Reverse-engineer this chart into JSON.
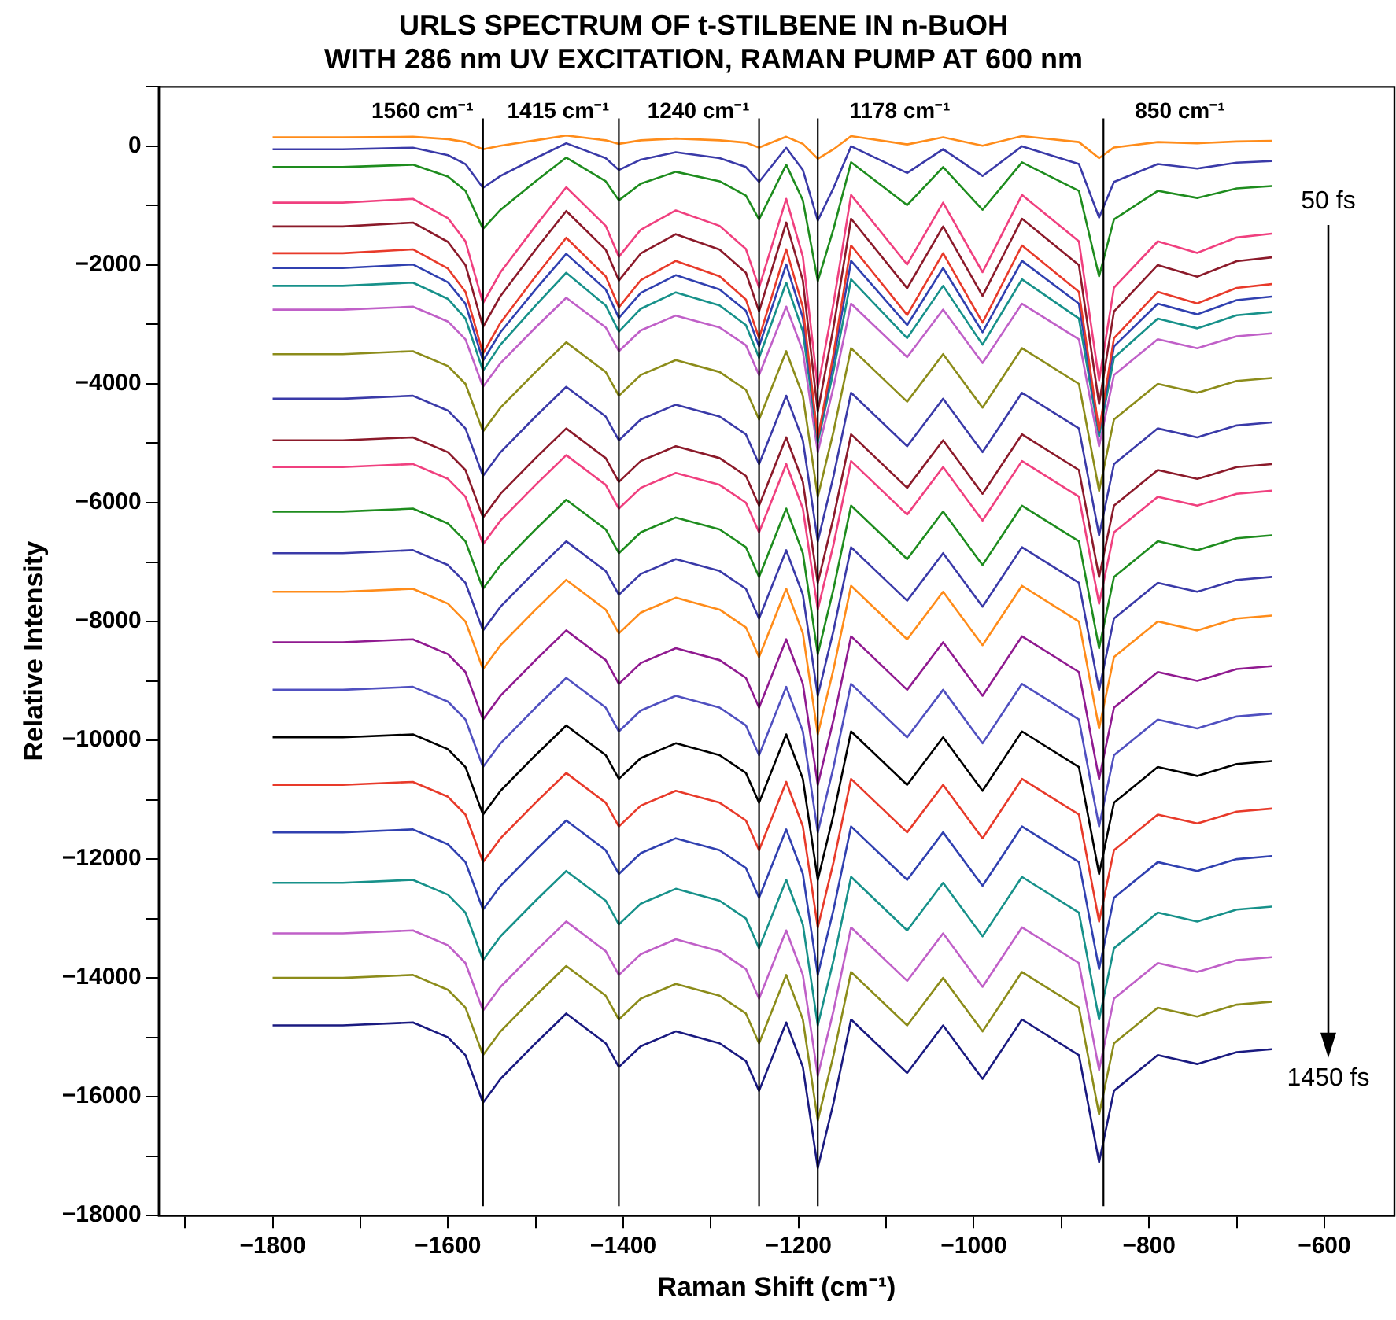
{
  "chart_data": {
    "type": "line",
    "title": "URLS SPECTRUM OF t-STILBENE IN n-BuOH\nWITH 286 nm UV EXCITATION, RAMAN PUMP AT 600 nm",
    "xlabel": "Raman Shift (cm⁻¹)",
    "ylabel": "Relative Intensity",
    "marker": "none",
    "grid": false,
    "xlim": [
      -1930,
      -520
    ],
    "ylim": [
      -18000,
      1000
    ],
    "xticks": [
      {
        "value": -1900,
        "label": null
      },
      {
        "value": -1800,
        "label": "−1800"
      },
      {
        "value": -1700,
        "label": null
      },
      {
        "value": -1600,
        "label": "−1600"
      },
      {
        "value": -1500,
        "label": null
      },
      {
        "value": -1400,
        "label": "−1400"
      },
      {
        "value": -1300,
        "label": null
      },
      {
        "value": -1200,
        "label": "−1200"
      },
      {
        "value": -1100,
        "label": null
      },
      {
        "value": -1000,
        "label": "−1000"
      },
      {
        "value": -900,
        "label": null
      },
      {
        "value": -800,
        "label": "−800"
      },
      {
        "value": -700,
        "label": null
      },
      {
        "value": -600,
        "label": "−600"
      }
    ],
    "yticks": [
      {
        "value": 1000,
        "label": null
      },
      0,
      {
        "value": -1000,
        "label": null
      },
      {
        "value": -2000,
        "label": "−2000"
      },
      {
        "value": -3000,
        "label": null
      },
      {
        "value": -4000,
        "label": "−4000"
      },
      {
        "value": -5000,
        "label": null
      },
      {
        "value": -6000,
        "label": "−6000"
      },
      {
        "value": -7000,
        "label": null
      },
      {
        "value": -8000,
        "label": "−8000"
      },
      {
        "value": -9000,
        "label": null
      },
      {
        "value": -10000,
        "label": "−10000"
      },
      {
        "value": -11000,
        "label": null
      },
      {
        "value": -12000,
        "label": "−12000"
      },
      {
        "value": -13000,
        "label": null
      },
      {
        "value": -14000,
        "label": "−14000"
      },
      {
        "value": -15000,
        "label": null
      },
      {
        "value": -16000,
        "label": "−16000"
      },
      {
        "value": -17000,
        "label": null
      },
      {
        "value": -18000,
        "label": "−18000"
      }
    ],
    "ref_lines": [
      {
        "axis": "x",
        "value": -1560,
        "label": "1560 cm⁻¹",
        "color": "#000000"
      },
      {
        "axis": "x",
        "value": -1405,
        "label": "1415 cm⁻¹",
        "color": "#000000"
      },
      {
        "axis": "x",
        "value": -1245,
        "label": "1240 cm⁻¹",
        "color": "#000000"
      },
      {
        "axis": "x",
        "value": -1178,
        "label": "1178 cm⁻¹",
        "color": "#000000"
      },
      {
        "axis": "x",
        "value": -852,
        "label": "850 cm⁻¹",
        "color": "#000000"
      }
    ],
    "annotations": [
      "50 fs",
      "1450 fs"
    ],
    "x": [
      -1800,
      -1720,
      -1640,
      -1600,
      -1580,
      -1560,
      -1540,
      -1500,
      -1465,
      -1420,
      -1405,
      -1380,
      -1340,
      -1290,
      -1260,
      -1245,
      -1214,
      -1195,
      -1178,
      -1160,
      -1140,
      -1076,
      -1035,
      -990,
      -945,
      -880,
      -857,
      -840,
      -790,
      -745,
      -700,
      -660
    ],
    "series": [
      {
        "color": "#ff8c1a",
        "values": [
          150,
          150,
          160,
          120,
          70,
          -50,
          10,
          100,
          180,
          100,
          40,
          100,
          130,
          100,
          60,
          -20,
          160,
          40,
          -210,
          -50,
          170,
          30,
          150,
          10,
          170,
          70,
          -200,
          -20,
          70,
          50,
          80,
          90
        ]
      },
      {
        "color": "#3a3aa8",
        "values": [
          -50,
          -50,
          -25,
          -150,
          -300,
          -700,
          -500,
          -200,
          50,
          -200,
          -400,
          -225,
          -100,
          -200,
          -350,
          -600,
          -25,
          -400,
          -1250,
          -700,
          0,
          -450,
          -50,
          -500,
          0,
          -300,
          -1200,
          -600,
          -300,
          -375,
          -275,
          -250
        ]
      },
      {
        "color": "#1e8c1e",
        "values": [
          -350,
          -350,
          -310,
          -510,
          -750,
          -1390,
          -1070,
          -590,
          -190,
          -590,
          -910,
          -630,
          -430,
          -590,
          -830,
          -1230,
          -310,
          -910,
          -2270,
          -1390,
          -270,
          -990,
          -350,
          -1070,
          -270,
          -750,
          -2190,
          -1230,
          -750,
          -870,
          -710,
          -670
        ]
      },
      {
        "color": "#f0407f",
        "values": [
          -950,
          -950,
          -885,
          -1210,
          -1600,
          -2640,
          -2120,
          -1340,
          -690,
          -1340,
          -1860,
          -1405,
          -1080,
          -1340,
          -1730,
          -2380,
          -885,
          -1860,
          -4070,
          -2640,
          -820,
          -1990,
          -950,
          -2120,
          -820,
          -1600,
          -3940,
          -2380,
          -1600,
          -1795,
          -1535,
          -1470
        ]
      },
      {
        "color": "#8b1a2a",
        "values": [
          -1350,
          -1350,
          -1285,
          -1610,
          -2000,
          -3040,
          -2520,
          -1740,
          -1090,
          -1740,
          -2260,
          -1805,
          -1480,
          -1740,
          -2130,
          -2780,
          -1285,
          -2260,
          -4470,
          -3040,
          -1220,
          -2390,
          -1350,
          -2520,
          -1220,
          -2000,
          -4340,
          -2780,
          -2000,
          -2195,
          -1935,
          -1870
        ]
      },
      {
        "color": "#e83a2a",
        "values": [
          -1800,
          -1800,
          -1735,
          -2060,
          -2450,
          -3490,
          -2970,
          -2190,
          -1540,
          -2190,
          -2710,
          -2255,
          -1930,
          -2190,
          -2580,
          -3230,
          -1735,
          -2710,
          -4920,
          -3490,
          -1670,
          -2840,
          -1800,
          -2970,
          -1670,
          -2450,
          -4790,
          -3230,
          -2450,
          -2645,
          -2385,
          -2320
        ]
      },
      {
        "color": "#3040b0",
        "values": [
          -2050,
          -2050,
          -1990,
          -2290,
          -2650,
          -3610,
          -3130,
          -2410,
          -1810,
          -2410,
          -2890,
          -2470,
          -2170,
          -2410,
          -2770,
          -3370,
          -1990,
          -2890,
          -4930,
          -3610,
          -1930,
          -3010,
          -2050,
          -3130,
          -1930,
          -2650,
          -4810,
          -3370,
          -2650,
          -2830,
          -2590,
          -2530
        ]
      },
      {
        "color": "#17918a",
        "values": [
          -2350,
          -2350,
          -2295,
          -2570,
          -2900,
          -3780,
          -3340,
          -2680,
          -2130,
          -2680,
          -3120,
          -2735,
          -2460,
          -2680,
          -3010,
          -3560,
          -2295,
          -3120,
          -4990,
          -3780,
          -2240,
          -3230,
          -2350,
          -3340,
          -2240,
          -2900,
          -4880,
          -3560,
          -2900,
          -3065,
          -2845,
          -2790
        ]
      },
      {
        "color": "#c060c8",
        "values": [
          -2750,
          -2750,
          -2700,
          -2950,
          -3250,
          -4050,
          -3650,
          -3050,
          -2550,
          -3050,
          -3450,
          -3100,
          -2850,
          -3050,
          -3350,
          -3850,
          -2700,
          -3450,
          -5150,
          -4050,
          -2650,
          -3550,
          -2750,
          -3650,
          -2650,
          -3250,
          -5050,
          -3850,
          -3250,
          -3400,
          -3200,
          -3150
        ]
      },
      {
        "color": "#8c8c1a",
        "values": [
          -3500,
          -3500,
          -3450,
          -3700,
          -4000,
          -4800,
          -4400,
          -3800,
          -3300,
          -3800,
          -4200,
          -3850,
          -3600,
          -3800,
          -4100,
          -4600,
          -3450,
          -4200,
          -5900,
          -4800,
          -3400,
          -4300,
          -3500,
          -4400,
          -3400,
          -4000,
          -5800,
          -4600,
          -4000,
          -4150,
          -3950,
          -3900
        ]
      },
      {
        "color": "#3a3aa8",
        "values": [
          -4250,
          -4250,
          -4200,
          -4450,
          -4750,
          -5550,
          -5150,
          -4550,
          -4050,
          -4550,
          -4950,
          -4600,
          -4350,
          -4550,
          -4850,
          -5350,
          -4200,
          -4950,
          -6650,
          -5550,
          -4150,
          -5050,
          -4250,
          -5150,
          -4150,
          -4750,
          -6550,
          -5350,
          -4750,
          -4900,
          -4700,
          -4650
        ]
      },
      {
        "color": "#8b1a2a",
        "values": [
          -4950,
          -4950,
          -4900,
          -5150,
          -5450,
          -6250,
          -5850,
          -5250,
          -4750,
          -5250,
          -5650,
          -5300,
          -5050,
          -5250,
          -5550,
          -6050,
          -4900,
          -5650,
          -7350,
          -6250,
          -4850,
          -5750,
          -4950,
          -5850,
          -4850,
          -5450,
          -7250,
          -6050,
          -5450,
          -5600,
          -5400,
          -5350
        ]
      },
      {
        "color": "#f0407f",
        "values": [
          -5400,
          -5400,
          -5350,
          -5600,
          -5900,
          -6700,
          -6300,
          -5700,
          -5200,
          -5700,
          -6100,
          -5750,
          -5500,
          -5700,
          -6000,
          -6500,
          -5350,
          -6100,
          -7800,
          -6700,
          -5300,
          -6200,
          -5400,
          -6300,
          -5300,
          -5900,
          -7700,
          -6500,
          -5900,
          -6050,
          -5850,
          -5800
        ]
      },
      {
        "color": "#1e8c1e",
        "values": [
          -6150,
          -6150,
          -6100,
          -6350,
          -6650,
          -7450,
          -7050,
          -6450,
          -5950,
          -6450,
          -6850,
          -6500,
          -6250,
          -6450,
          -6750,
          -7250,
          -6100,
          -6850,
          -8550,
          -7450,
          -6050,
          -6950,
          -6150,
          -7050,
          -6050,
          -6650,
          -8450,
          -7250,
          -6650,
          -6800,
          -6600,
          -6550
        ]
      },
      {
        "color": "#3a3aa8",
        "values": [
          -6850,
          -6850,
          -6800,
          -7050,
          -7350,
          -8150,
          -7750,
          -7150,
          -6650,
          -7150,
          -7550,
          -7200,
          -6950,
          -7150,
          -7450,
          -7950,
          -6800,
          -7550,
          -9250,
          -8150,
          -6750,
          -7650,
          -6850,
          -7750,
          -6750,
          -7350,
          -9150,
          -7950,
          -7350,
          -7500,
          -7300,
          -7250
        ]
      },
      {
        "color": "#ff8c1a",
        "values": [
          -7500,
          -7500,
          -7450,
          -7700,
          -8000,
          -8800,
          -8400,
          -7800,
          -7300,
          -7800,
          -8200,
          -7850,
          -7600,
          -7800,
          -8100,
          -8600,
          -7450,
          -8200,
          -9900,
          -8800,
          -7400,
          -8300,
          -7500,
          -8400,
          -7400,
          -8000,
          -9800,
          -8600,
          -8000,
          -8150,
          -7950,
          -7900
        ]
      },
      {
        "color": "#901a90",
        "values": [
          -8350,
          -8350,
          -8300,
          -8550,
          -8850,
          -9650,
          -9250,
          -8650,
          -8150,
          -8650,
          -9050,
          -8700,
          -8450,
          -8650,
          -8950,
          -9450,
          -8300,
          -9050,
          -10750,
          -9650,
          -8250,
          -9150,
          -8350,
          -9250,
          -8250,
          -8850,
          -10650,
          -9450,
          -8850,
          -9000,
          -8800,
          -8750
        ]
      },
      {
        "color": "#5050c0",
        "values": [
          -9150,
          -9150,
          -9100,
          -9350,
          -9650,
          -10450,
          -10050,
          -9450,
          -8950,
          -9450,
          -9850,
          -9500,
          -9250,
          -9450,
          -9750,
          -10250,
          -9100,
          -9850,
          -11550,
          -10450,
          -9050,
          -9950,
          -9150,
          -10050,
          -9050,
          -9650,
          -11450,
          -10250,
          -9650,
          -9800,
          -9600,
          -9550
        ]
      },
      {
        "color": "#000000",
        "values": [
          -9950,
          -9950,
          -9900,
          -10150,
          -10450,
          -11250,
          -10850,
          -10250,
          -9750,
          -10250,
          -10650,
          -10300,
          -10050,
          -10250,
          -10550,
          -11050,
          -9900,
          -10650,
          -12350,
          -11250,
          -9850,
          -10750,
          -9950,
          -10850,
          -9850,
          -10450,
          -12250,
          -11050,
          -10450,
          -10600,
          -10400,
          -10350
        ]
      },
      {
        "color": "#e83a2a",
        "values": [
          -10750,
          -10750,
          -10700,
          -10950,
          -11250,
          -12050,
          -11650,
          -11050,
          -10550,
          -11050,
          -11450,
          -11100,
          -10850,
          -11050,
          -11350,
          -11850,
          -10700,
          -11450,
          -13150,
          -12050,
          -10650,
          -11550,
          -10750,
          -11650,
          -10650,
          -11250,
          -13050,
          -11850,
          -11250,
          -11400,
          -11200,
          -11150
        ]
      },
      {
        "color": "#3040b0",
        "values": [
          -11550,
          -11550,
          -11500,
          -11750,
          -12050,
          -12850,
          -12450,
          -11850,
          -11350,
          -11850,
          -12250,
          -11900,
          -11650,
          -11850,
          -12150,
          -12650,
          -11500,
          -12250,
          -13950,
          -12850,
          -11450,
          -12350,
          -11550,
          -12450,
          -11450,
          -12050,
          -13850,
          -12650,
          -12050,
          -12200,
          -12000,
          -11950
        ]
      },
      {
        "color": "#17918a",
        "values": [
          -12400,
          -12400,
          -12350,
          -12600,
          -12900,
          -13700,
          -13300,
          -12700,
          -12200,
          -12700,
          -13100,
          -12750,
          -12500,
          -12700,
          -13000,
          -13500,
          -12350,
          -13100,
          -14800,
          -13700,
          -12300,
          -13200,
          -12400,
          -13300,
          -12300,
          -12900,
          -14700,
          -13500,
          -12900,
          -13050,
          -12850,
          -12800
        ]
      },
      {
        "color": "#c060c8",
        "values": [
          -13250,
          -13250,
          -13200,
          -13450,
          -13750,
          -14550,
          -14150,
          -13550,
          -13050,
          -13550,
          -13950,
          -13600,
          -13350,
          -13550,
          -13850,
          -14350,
          -13200,
          -13950,
          -15650,
          -14550,
          -13150,
          -14050,
          -13250,
          -14150,
          -13150,
          -13750,
          -15550,
          -14350,
          -13750,
          -13900,
          -13700,
          -13650
        ]
      },
      {
        "color": "#8c8c1a",
        "values": [
          -14000,
          -14000,
          -13950,
          -14200,
          -14500,
          -15300,
          -14900,
          -14300,
          -13800,
          -14300,
          -14700,
          -14350,
          -14100,
          -14300,
          -14600,
          -15100,
          -13950,
          -14700,
          -16400,
          -15300,
          -13900,
          -14800,
          -14000,
          -14900,
          -13900,
          -14500,
          -16300,
          -15100,
          -14500,
          -14650,
          -14450,
          -14400
        ]
      },
      {
        "color": "#1a1a80",
        "values": [
          -14800,
          -14800,
          -14750,
          -15000,
          -15300,
          -16100,
          -15700,
          -15100,
          -14600,
          -15100,
          -15500,
          -15150,
          -14900,
          -15100,
          -15400,
          -15900,
          -14750,
          -15500,
          -17200,
          -16100,
          -14700,
          -15600,
          -14800,
          -15700,
          -14700,
          -15300,
          -17100,
          -15900,
          -15300,
          -15450,
          -15250,
          -15200
        ]
      }
    ]
  }
}
